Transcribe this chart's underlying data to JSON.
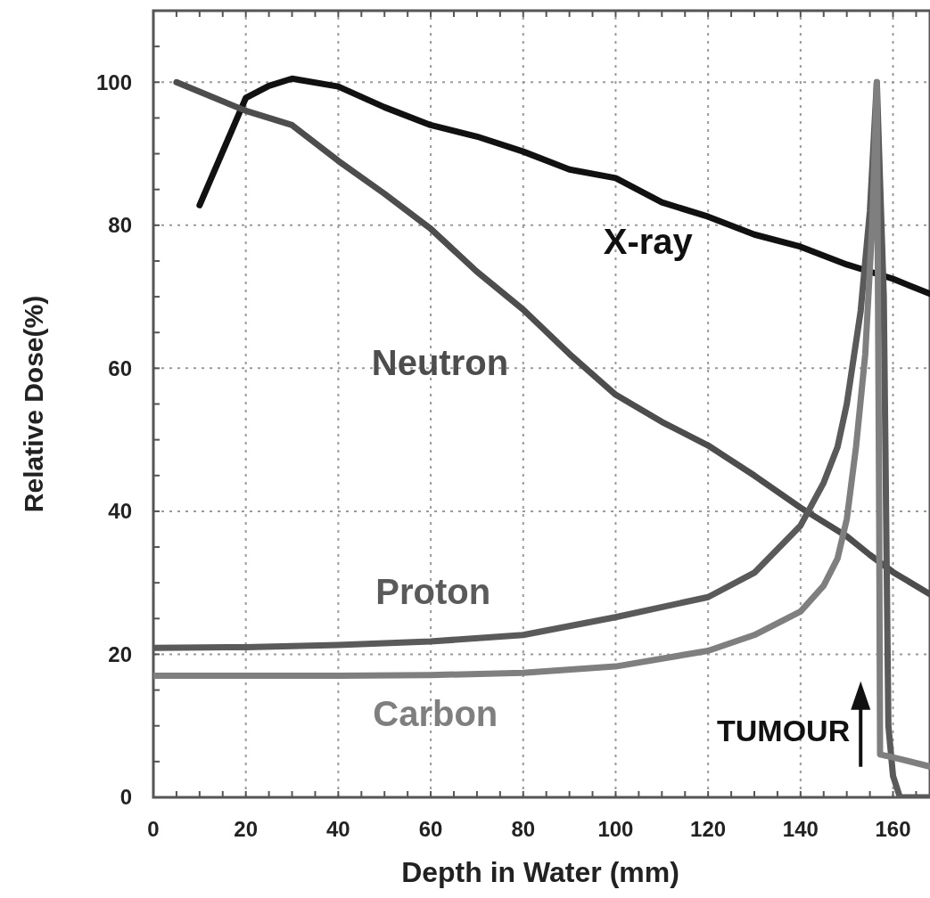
{
  "chart_data": {
    "type": "line",
    "xlabel": "Depth in Water (mm)",
    "ylabel": "Relative Dose(%)",
    "xlim": [
      0,
      168
    ],
    "ylim": [
      0,
      110
    ],
    "xticks": [
      0,
      {
        "value": 5,
        "label": null
      },
      {
        "value": 10,
        "label": null
      },
      {
        "value": 15,
        "label": null
      },
      20,
      {
        "value": 25,
        "label": null
      },
      {
        "value": 30,
        "label": null
      },
      {
        "value": 35,
        "label": null
      },
      40,
      {
        "value": 45,
        "label": null
      },
      {
        "value": 50,
        "label": null
      },
      {
        "value": 55,
        "label": null
      },
      60,
      {
        "value": 65,
        "label": null
      },
      {
        "value": 70,
        "label": null
      },
      {
        "value": 75,
        "label": null
      },
      80,
      {
        "value": 85,
        "label": null
      },
      {
        "value": 90,
        "label": null
      },
      {
        "value": 95,
        "label": null
      },
      100,
      {
        "value": 105,
        "label": null
      },
      {
        "value": 110,
        "label": null
      },
      {
        "value": 115,
        "label": null
      },
      120,
      {
        "value": 125,
        "label": null
      },
      {
        "value": 130,
        "label": null
      },
      {
        "value": 135,
        "label": null
      },
      140,
      {
        "value": 145,
        "label": null
      },
      {
        "value": 150,
        "label": null
      },
      {
        "value": 155,
        "label": null
      },
      160,
      {
        "value": 165,
        "label": null
      }
    ],
    "yticks": [
      0,
      {
        "value": 5,
        "label": null
      },
      {
        "value": 10,
        "label": null
      },
      {
        "value": 15,
        "label": null
      },
      20,
      {
        "value": 25,
        "label": null
      },
      {
        "value": 30,
        "label": null
      },
      {
        "value": 35,
        "label": null
      },
      40,
      {
        "value": 45,
        "label": null
      },
      {
        "value": 50,
        "label": null
      },
      {
        "value": 55,
        "label": null
      },
      60,
      {
        "value": 65,
        "label": null
      },
      {
        "value": 70,
        "label": null
      },
      {
        "value": 75,
        "label": null
      },
      80,
      {
        "value": 85,
        "label": null
      },
      {
        "value": 90,
        "label": null
      },
      {
        "value": 95,
        "label": null
      },
      100,
      {
        "value": 105,
        "label": null
      }
    ],
    "grid": true,
    "marker": "none",
    "line_style": "solid",
    "series": [
      {
        "name": "X-ray",
        "color": "#111111",
        "x": [
          10,
          20,
          25,
          30,
          40,
          50,
          60,
          70,
          80,
          90,
          100,
          110,
          120,
          130,
          140,
          150,
          160,
          168
        ],
        "values": [
          82.8,
          97.8,
          99.5,
          100.5,
          99.4,
          96.5,
          94,
          92.4,
          90.3,
          87.8,
          86.6,
          83.2,
          81.2,
          78.7,
          77,
          74.5,
          72.5,
          70.4
        ]
      },
      {
        "name": "Neutron",
        "color": "#4d4d4d",
        "x": [
          5,
          20,
          30,
          40,
          50,
          60,
          70,
          80,
          90,
          100,
          110,
          120,
          130,
          140,
          150,
          155,
          160,
          168
        ],
        "values": [
          100,
          96,
          94,
          89,
          84.4,
          79.5,
          73.5,
          68.2,
          62,
          56.3,
          52.5,
          49.2,
          45,
          40.5,
          36.5,
          33.9,
          31.5,
          28.4
        ]
      },
      {
        "name": "Proton",
        "color": "#5a5a5a",
        "x": [
          0,
          20,
          40,
          60,
          80,
          100,
          120,
          130,
          140,
          145,
          148,
          150,
          153,
          155,
          156.5,
          158,
          159,
          160,
          161.5,
          168
        ],
        "values": [
          20.9,
          21,
          21.3,
          21.8,
          22.7,
          25.2,
          28,
          31.4,
          38,
          44,
          49,
          55,
          68,
          82,
          100,
          70,
          10,
          3,
          0,
          0
        ]
      },
      {
        "name": "Carbon",
        "color": "#7f7f7f",
        "x": [
          0,
          20,
          40,
          60,
          80,
          100,
          120,
          130,
          140,
          145,
          148,
          150,
          152,
          154,
          155.5,
          156.5,
          157,
          157.2,
          160,
          168
        ],
        "values": [
          17,
          17,
          17,
          17.1,
          17.4,
          18.3,
          20.5,
          22.7,
          26,
          29.6,
          33.4,
          38.9,
          49,
          62,
          80,
          100,
          40,
          6,
          5.6,
          4.3
        ]
      }
    ],
    "annotations": [
      "TUMOUR"
    ]
  }
}
